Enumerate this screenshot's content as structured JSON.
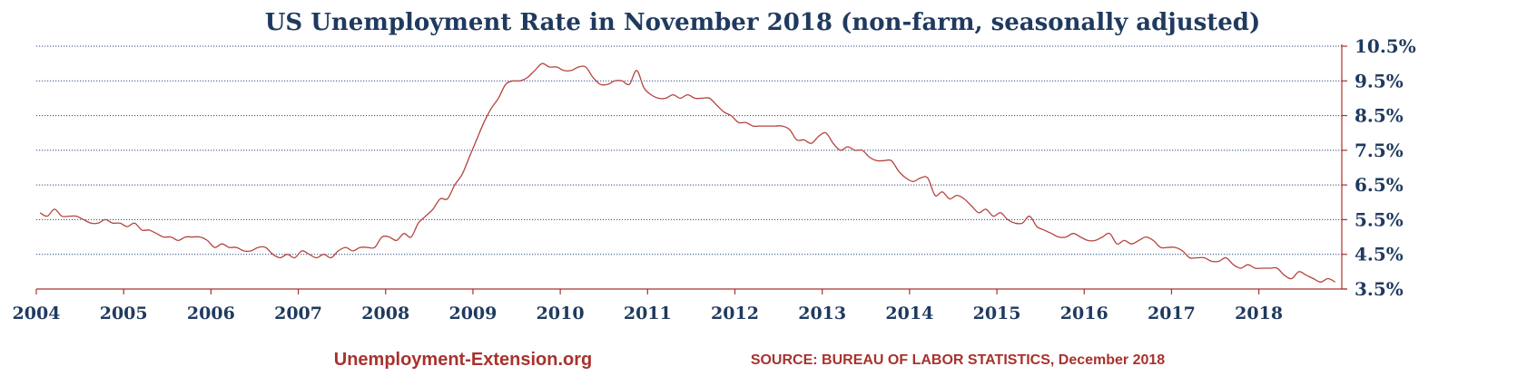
{
  "chart_data": {
    "type": "line",
    "title": "US Unemployment Rate in November 2018 (non-farm, seasonally adjusted)",
    "xlabel": "",
    "ylabel": "",
    "x_ticks": [
      "2004",
      "2005",
      "2006",
      "2007",
      "2008",
      "2009",
      "2010",
      "2011",
      "2012",
      "2013",
      "2014",
      "2015",
      "2016",
      "2017",
      "2018"
    ],
    "y_ticks": [
      "3.5%",
      "4.5%",
      "5.5%",
      "6.5%",
      "7.5%",
      "8.5%",
      "9.5%",
      "10.5%"
    ],
    "xlim": [
      2004.0,
      2018.95
    ],
    "ylim": [
      3.5,
      10.5
    ],
    "grid": true,
    "y_axis_side": "right",
    "series": [
      {
        "color": "#b5443f",
        "start": "2004-01",
        "frequency": "monthly",
        "values": [
          5.7,
          5.6,
          5.8,
          5.6,
          5.6,
          5.6,
          5.5,
          5.4,
          5.4,
          5.5,
          5.4,
          5.4,
          5.3,
          5.4,
          5.2,
          5.2,
          5.1,
          5.0,
          5.0,
          4.9,
          5.0,
          5.0,
          5.0,
          4.9,
          4.7,
          4.8,
          4.7,
          4.7,
          4.6,
          4.6,
          4.7,
          4.7,
          4.5,
          4.4,
          4.5,
          4.4,
          4.6,
          4.5,
          4.4,
          4.5,
          4.4,
          4.6,
          4.7,
          4.6,
          4.7,
          4.7,
          4.7,
          5.0,
          5.0,
          4.9,
          5.1,
          5.0,
          5.4,
          5.6,
          5.8,
          6.1,
          6.1,
          6.5,
          6.8,
          7.3,
          7.8,
          8.3,
          8.7,
          9.0,
          9.4,
          9.5,
          9.5,
          9.6,
          9.8,
          10.0,
          9.9,
          9.9,
          9.8,
          9.8,
          9.9,
          9.9,
          9.6,
          9.4,
          9.4,
          9.5,
          9.5,
          9.4,
          9.8,
          9.3,
          9.1,
          9.0,
          9.0,
          9.1,
          9.0,
          9.1,
          9.0,
          9.0,
          9.0,
          8.8,
          8.6,
          8.5,
          8.3,
          8.3,
          8.2,
          8.2,
          8.2,
          8.2,
          8.2,
          8.1,
          7.8,
          7.8,
          7.7,
          7.9,
          8.0,
          7.7,
          7.5,
          7.6,
          7.5,
          7.5,
          7.3,
          7.2,
          7.2,
          7.2,
          6.9,
          6.7,
          6.6,
          6.7,
          6.7,
          6.2,
          6.3,
          6.1,
          6.2,
          6.1,
          5.9,
          5.7,
          5.8,
          5.6,
          5.7,
          5.5,
          5.4,
          5.4,
          5.6,
          5.3,
          5.2,
          5.1,
          5.0,
          5.0,
          5.1,
          5.0,
          4.9,
          4.9,
          5.0,
          5.1,
          4.8,
          4.9,
          4.8,
          4.9,
          5.0,
          4.9,
          4.7,
          4.7,
          4.7,
          4.6,
          4.4,
          4.4,
          4.4,
          4.3,
          4.3,
          4.4,
          4.2,
          4.1,
          4.2,
          4.1,
          4.1,
          4.1,
          4.1,
          3.9,
          3.8,
          4.0,
          3.9,
          3.8,
          3.7,
          3.8,
          3.7
        ]
      }
    ]
  },
  "footer": {
    "site": "Unemployment-Extension.org",
    "source": "SOURCE: BUREAU OF LABOR STATISTICS, December 2018"
  }
}
